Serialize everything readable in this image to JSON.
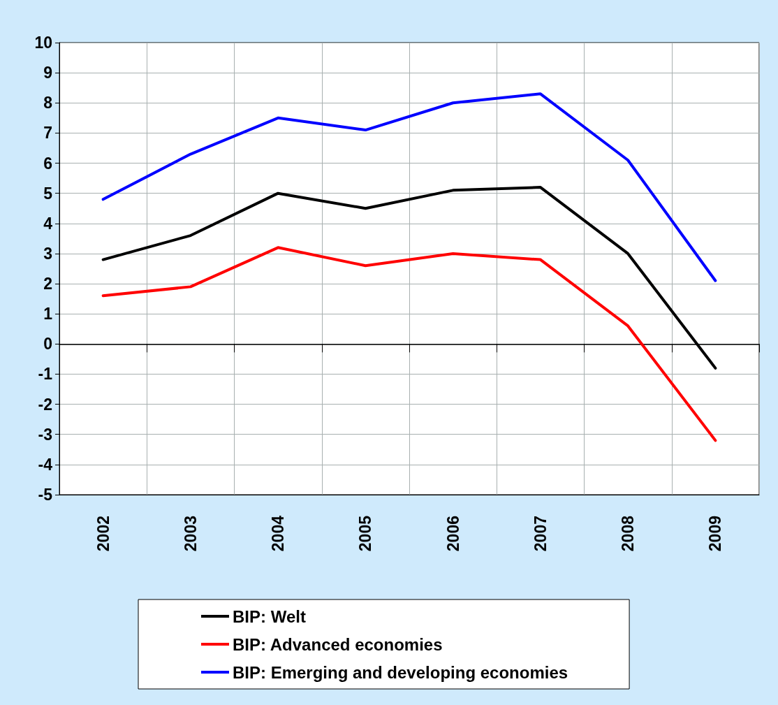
{
  "chart_data": {
    "type": "line",
    "categories": [
      "2002",
      "2003",
      "2004",
      "2005",
      "2006",
      "2007",
      "2008",
      "2009"
    ],
    "series": [
      {
        "name": "BIP: Welt",
        "color": "#000000",
        "values": [
          2.8,
          3.6,
          5.0,
          4.5,
          5.1,
          5.2,
          3.0,
          -0.8
        ]
      },
      {
        "name": "BIP: Advanced economies",
        "color": "#ff0000",
        "values": [
          1.6,
          1.9,
          3.2,
          2.6,
          3.0,
          2.8,
          0.6,
          -3.2
        ]
      },
      {
        "name": "BIP: Emerging and developing economies",
        "color": "#0000ff",
        "values": [
          4.8,
          6.3,
          7.5,
          7.1,
          8.0,
          8.3,
          6.1,
          2.1
        ]
      }
    ],
    "ylim": [
      -5,
      10
    ],
    "yticks": [
      -5,
      -4,
      -3,
      -2,
      -1,
      0,
      1,
      2,
      3,
      4,
      5,
      6,
      7,
      8,
      9,
      10
    ],
    "grid": true,
    "legend": "bottom",
    "marker": "none",
    "line_style": "solid"
  }
}
